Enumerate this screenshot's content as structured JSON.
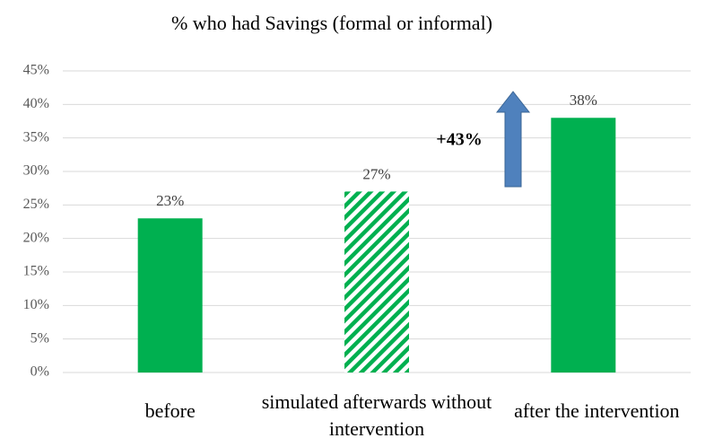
{
  "chart_data": {
    "type": "bar",
    "title": "% who had Savings (formal or informal)",
    "categories": [
      "before",
      "simulated afterwards without intervention",
      "after the intervention"
    ],
    "values": [
      23,
      27,
      38
    ],
    "value_labels": [
      "23%",
      "27%",
      "38%"
    ],
    "color": "#00b050",
    "hatched": [
      false,
      true,
      false
    ],
    "ylim": [
      0,
      45
    ],
    "yticks": [
      {
        "value": 0,
        "label": "0%"
      },
      {
        "value": 5,
        "label": "5%"
      },
      {
        "value": 10,
        "label": "10%"
      },
      {
        "value": 15,
        "label": "15%"
      },
      {
        "value": 20,
        "label": "20%"
      },
      {
        "value": 25,
        "label": "25%"
      },
      {
        "value": 30,
        "label": "30%"
      },
      {
        "value": 35,
        "label": "35%"
      },
      {
        "value": 40,
        "label": "40%"
      },
      {
        "value": 45,
        "label": "45%"
      }
    ],
    "grid": true,
    "annotation": "+43%"
  }
}
